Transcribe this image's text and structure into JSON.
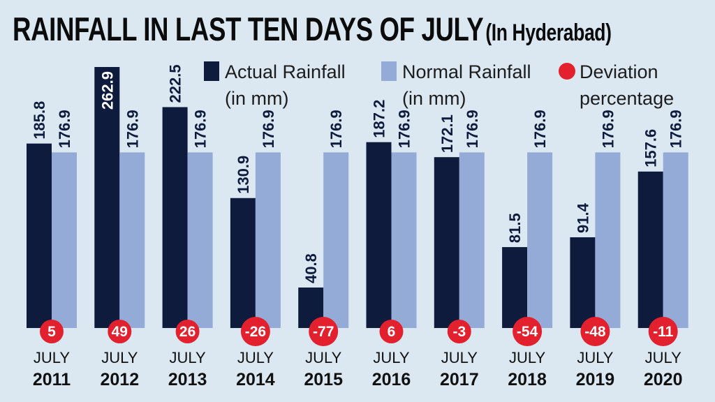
{
  "title": "RAINFALL IN LAST TEN DAYS OF JULY",
  "subtitle": "(In Hyderabad)",
  "chart_data": {
    "type": "bar",
    "categories": [
      {
        "month": "JULY",
        "year": "2011"
      },
      {
        "month": "JULY",
        "year": "2012"
      },
      {
        "month": "JULY",
        "year": "2013"
      },
      {
        "month": "JULY",
        "year": "2014"
      },
      {
        "month": "JULY",
        "year": "2015"
      },
      {
        "month": "JULY",
        "year": "2016"
      },
      {
        "month": "JULY",
        "year": "2017"
      },
      {
        "month": "JULY",
        "year": "2018"
      },
      {
        "month": "JULY",
        "year": "2019"
      },
      {
        "month": "JULY",
        "year": "2020"
      }
    ],
    "series": [
      {
        "name": "Actual Rainfall (in mm)",
        "legend_lines": [
          "Actual Rainfall",
          "(in mm)"
        ],
        "color": "#0f1b3c",
        "values": [
          185.8,
          262.9,
          222.5,
          130.9,
          40.8,
          187.2,
          172.1,
          81.5,
          91.4,
          157.6
        ],
        "labels": [
          "185.8",
          "262.9",
          "222.5",
          "130.9",
          "40.8",
          "187.2",
          "172.1",
          "81.5",
          "91.4",
          "157.6"
        ]
      },
      {
        "name": "Normal Rainfall (in mm)",
        "legend_lines": [
          "Normal Rainfall",
          "(in mm)"
        ],
        "color": "#93abd6",
        "values": [
          176.9,
          176.9,
          176.9,
          176.9,
          176.9,
          176.9,
          176.9,
          176.9,
          176.9,
          176.9
        ],
        "labels": [
          "176.9",
          "176.9",
          "176.9",
          "176.9",
          "176.9",
          "176.9",
          "176.9",
          "176.9",
          "176.9",
          "176.9"
        ]
      }
    ],
    "deviation": {
      "name": "Deviation percentage",
      "legend_lines": [
        "Deviation",
        "percentage"
      ],
      "color": "#e3202d",
      "values": [
        5,
        49,
        26,
        -26,
        -77,
        6,
        -3,
        -54,
        -48,
        -11
      ],
      "labels": [
        "5",
        "49",
        "26",
        "-26",
        "-77",
        "6",
        "-3",
        "-54",
        "-48",
        "-11"
      ]
    },
    "ylim": [
      0,
      300
    ],
    "grid": false,
    "legend_position": "top-right"
  }
}
